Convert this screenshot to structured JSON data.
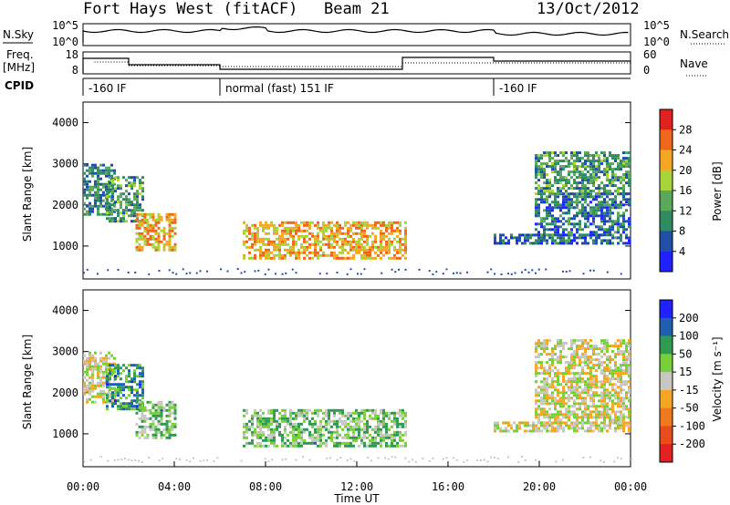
{
  "chart_data": {
    "type": "heatmap",
    "title": "Fort Hays West (fitACF)",
    "beam": "Beam 21",
    "date": "13/Oct/2012",
    "xlabel": "Time UT",
    "x_ticks": [
      "00:00",
      "04:00",
      "08:00",
      "12:00",
      "16:00",
      "20:00",
      "00:00"
    ],
    "xlim_hours": [
      0,
      24
    ],
    "noise": {
      "left_label": "N.Sky",
      "right_label": "N.Search",
      "left_ticks": [
        "10^5",
        "10^0"
      ],
      "right_ticks": [
        "10^5",
        "10^0"
      ]
    },
    "freq": {
      "left_label_top": "Freq.",
      "left_label_unit": "[MHz]",
      "left_ticks": [
        "18",
        "8"
      ],
      "right_label": "Nave",
      "right_ticks": [
        "60",
        "0"
      ]
    },
    "cpid": {
      "label": "CPID",
      "segments": [
        {
          "start_hour": 0.0,
          "label": "-160 IF"
        },
        {
          "start_hour": 6.0,
          "label": "normal (fast) 151 IF"
        },
        {
          "start_hour": 18.0,
          "label": "-160 IF"
        }
      ]
    },
    "panels": [
      {
        "name": "power",
        "ylabel": "Slant Range [km]",
        "y_ticks": [
          1000,
          2000,
          3000,
          4000
        ],
        "ylim": [
          200,
          4500
        ],
        "colorbar_label": "Power [dB]",
        "colorbar_ticks": [
          4,
          8,
          12,
          16,
          20,
          24,
          28
        ],
        "colorbar_range": [
          0,
          32
        ],
        "colors": [
          "#1f22ff",
          "#1f4fa8",
          "#2f8c62",
          "#5ba85a",
          "#a8d43a",
          "#f5a623",
          "#f0661b",
          "#e32020"
        ]
      },
      {
        "name": "velocity",
        "ylabel": "Slant Range [km]",
        "y_ticks": [
          1000,
          2000,
          3000,
          4000
        ],
        "ylim": [
          200,
          4500
        ],
        "colorbar_label": "Velocity [m s⁻¹]",
        "colorbar_ticks": [
          200,
          100,
          50,
          15,
          -15,
          -50,
          -100,
          -200
        ],
        "colorbar_range": [
          -250,
          250
        ],
        "colors": [
          "#1f22ff",
          "#1f5fb0",
          "#2f9a52",
          "#79cf3a",
          "#c8c8c0",
          "#f5a623",
          "#f07a1b",
          "#e84d1b",
          "#e32020"
        ]
      }
    ],
    "echo_regions": [
      {
        "t0": 0.0,
        "t1": 1.4,
        "r0": 1800,
        "r1": 3000,
        "power": 10,
        "velocity": 0
      },
      {
        "t0": 1.0,
        "t1": 2.6,
        "r0": 1600,
        "r1": 2700,
        "power": 12,
        "velocity": 120
      },
      {
        "t0": 2.3,
        "t1": 4.1,
        "r0": 900,
        "r1": 1800,
        "power": 22,
        "velocity": 60
      },
      {
        "t0": 7.0,
        "t1": 14.1,
        "r0": 700,
        "r1": 1600,
        "power": 22,
        "velocity": 60
      },
      {
        "t0": 18.0,
        "t1": 24.0,
        "r0": 1100,
        "r1": 1300,
        "power": 7,
        "velocity": 0
      },
      {
        "t0": 19.8,
        "t1": 24.0,
        "r0": 1300,
        "r1": 2300,
        "power": 8,
        "velocity": 0
      },
      {
        "t0": 19.8,
        "t1": 24.0,
        "r0": 2300,
        "r1": 3300,
        "power": 12,
        "velocity": 0
      }
    ]
  }
}
